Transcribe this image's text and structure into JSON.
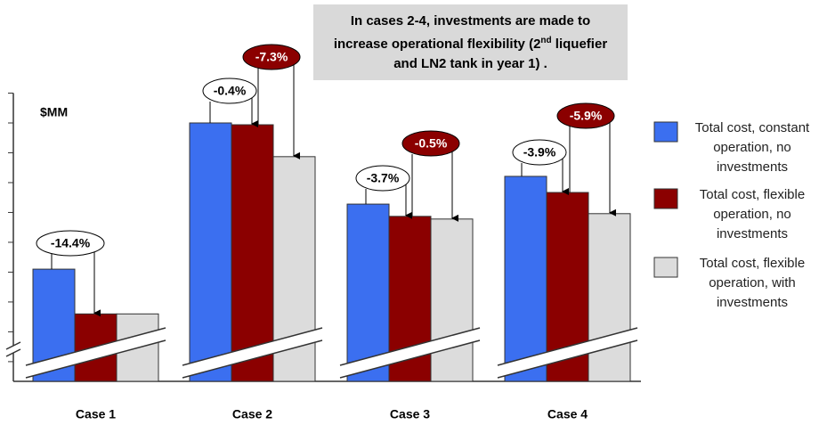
{
  "chart_data": {
    "type": "bar",
    "y_axis_label": "$MM",
    "note": [
      "In cases 2-4, investments are made to increase operational flexibility (2",
      "nd",
      " liquefier and LN2 tank in year 1) ."
    ],
    "categories": [
      "Case 1",
      "Case 2",
      "Case 3",
      "Case 4"
    ],
    "series": [
      {
        "name": "Total cost, constant operation, no investments",
        "color": "#3b6ff0",
        "values": [
          1.1,
          6.0,
          3.28,
          4.21
        ]
      },
      {
        "name": "Total cost, flexible operation, no investments",
        "color": "#8b0000",
        "values": [
          -0.4,
          5.94,
          2.87,
          3.67
        ]
      },
      {
        "name": "Total cost, flexible operation, with investments",
        "color": "#dcdcdc",
        "values": [
          -0.4,
          4.87,
          2.78,
          2.96
        ]
      }
    ],
    "annotations": [
      "-14.4%",
      "-0.4%",
      "-7.3%",
      "-3.7%",
      "-0.5%",
      "-3.9%",
      "-5.9%"
    ],
    "ylim": [
      -2.66,
      7.0
    ],
    "yticks": [
      -2,
      -1,
      0,
      1,
      2,
      3,
      4,
      5,
      6,
      7
    ]
  }
}
